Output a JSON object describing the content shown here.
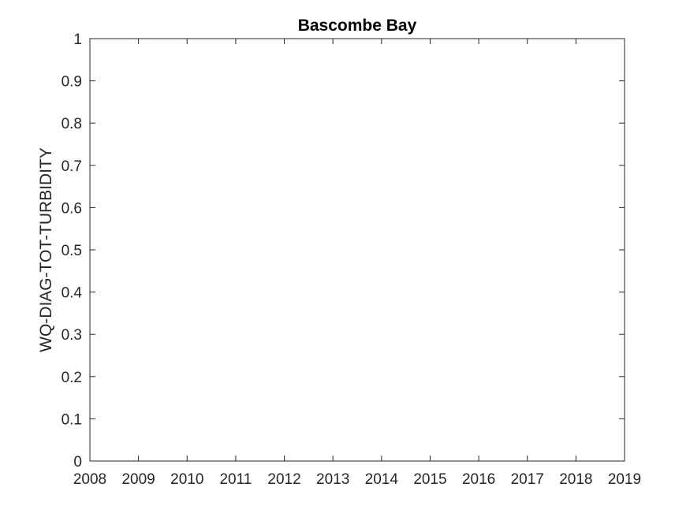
{
  "chart_data": {
    "type": "line",
    "title": "Bascombe Bay",
    "xlabel": "",
    "ylabel": "WQ-DIAG-TOT-TURBIDITY",
    "xlim": [
      2008,
      2019
    ],
    "ylim": [
      0,
      1
    ],
    "x_ticks": [
      "2008",
      "2009",
      "2010",
      "2011",
      "2012",
      "2013",
      "2014",
      "2015",
      "2016",
      "2017",
      "2018",
      "2019"
    ],
    "y_ticks": [
      "0",
      "0.1",
      "0.2",
      "0.3",
      "0.4",
      "0.5",
      "0.6",
      "0.7",
      "0.8",
      "0.9",
      "1"
    ],
    "series": [],
    "grid": false,
    "legend": "none",
    "colors": {
      "axis": "#262626",
      "background": "#ffffff"
    }
  }
}
